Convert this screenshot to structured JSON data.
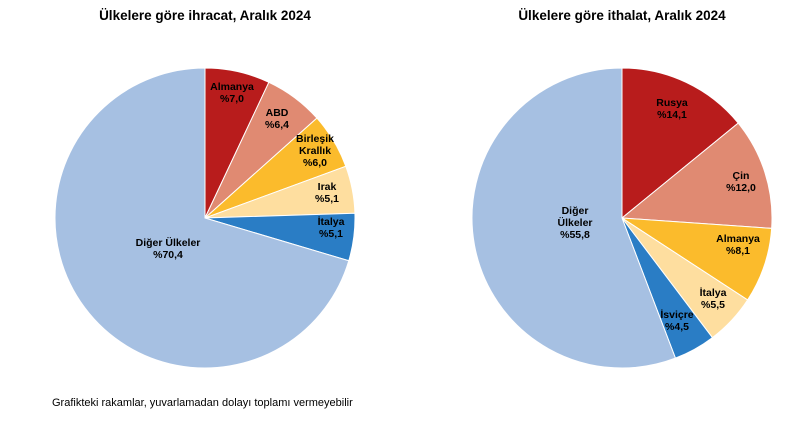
{
  "chart_data": [
    {
      "type": "pie",
      "title": "Ülkelere göre ihracat, Aralık 2024",
      "slices": [
        {
          "label": "Almanya",
          "value_text": "%7,0",
          "value": 7.0,
          "color": "#B81C1C"
        },
        {
          "label": "ABD",
          "value_text": "%6,4",
          "value": 6.4,
          "color": "#E08A72"
        },
        {
          "label": "Birleşik Krallık",
          "value_text": "%6,0",
          "value": 6.0,
          "color": "#FBBB2C"
        },
        {
          "label": "Irak",
          "value_text": "%5,1",
          "value": 5.1,
          "color": "#FEDE9F"
        },
        {
          "label": "İtalya",
          "value_text": "%5,1",
          "value": 5.1,
          "color": "#2A7DC5"
        },
        {
          "label": "Diğer Ülkeler",
          "value_text": "%70,4",
          "value": 70.4,
          "color": "#A6C0E2"
        }
      ]
    },
    {
      "type": "pie",
      "title": "Ülkelere göre ithalat, Aralık 2024",
      "slices": [
        {
          "label": "Rusya",
          "value_text": "%14,1",
          "value": 14.1,
          "color": "#B81C1C"
        },
        {
          "label": "Çin",
          "value_text": "%12,0",
          "value": 12.0,
          "color": "#E08A72"
        },
        {
          "label": "Almanya",
          "value_text": "%8,1",
          "value": 8.1,
          "color": "#FBBB2C"
        },
        {
          "label": "İtalya",
          "value_text": "%5,5",
          "value": 5.5,
          "color": "#FEDE9F"
        },
        {
          "label": "İsviçre",
          "value_text": "%4,5",
          "value": 4.5,
          "color": "#2A7DC5"
        },
        {
          "label": "Diğer Ülkeler",
          "value_text": "%55,8",
          "value": 55.8,
          "color": "#A6C0E2"
        }
      ]
    }
  ],
  "note": "Grafikteki rakamlar, yuvarlamadan dolayı toplamı vermeyebilir"
}
